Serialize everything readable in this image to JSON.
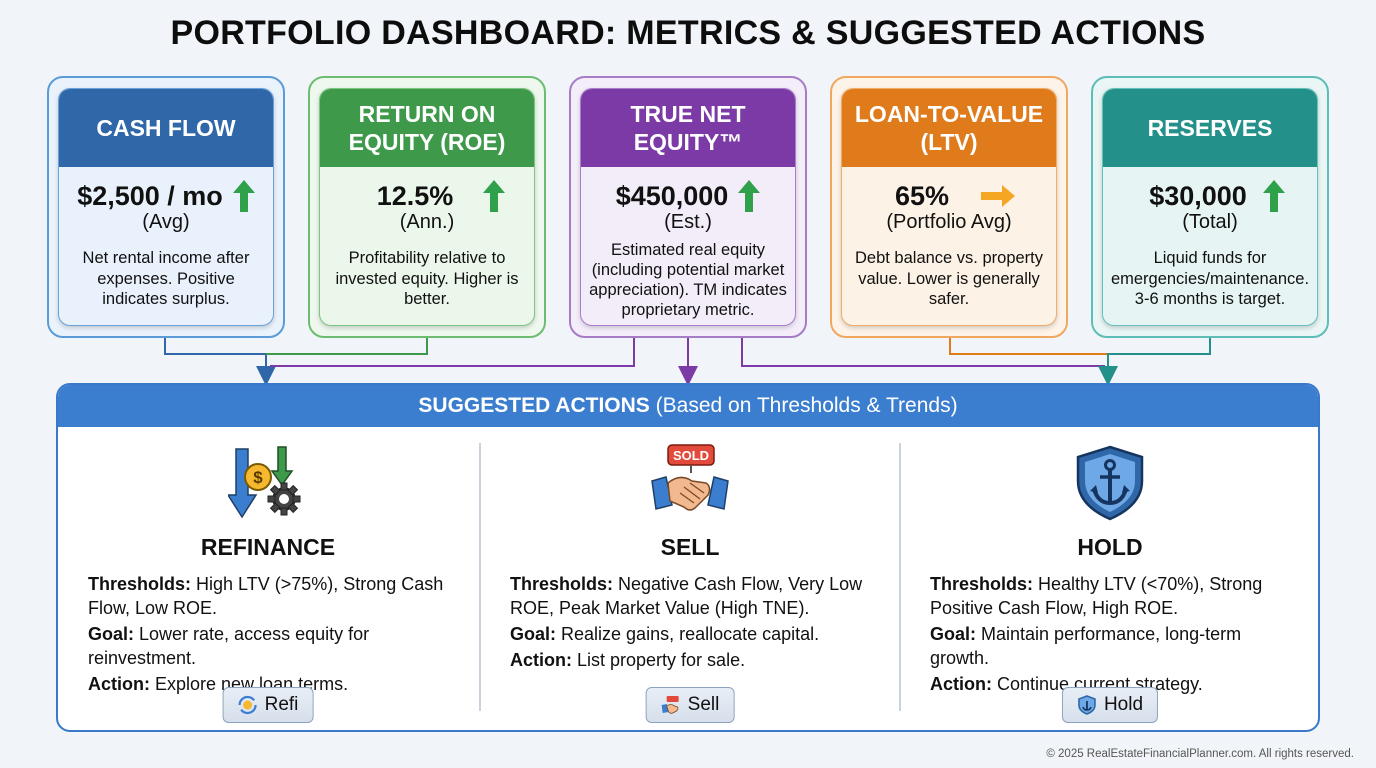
{
  "title": "PORTFOLIO DASHBOARD: METRICS & SUGGESTED ACTIONS",
  "colors": {
    "cash_flow": "#2f67a9",
    "roe": "#3e9a4a",
    "tne": "#7b3aa6",
    "ltv": "#e07b1c",
    "reserves": "#24908a",
    "arrow_up": "#2fa14a",
    "arrow_right": "#f5a623",
    "actions_header": "#3b7ed0"
  },
  "metrics": [
    {
      "id": "cash-flow",
      "title": "CASH FLOW",
      "value": "$2,500 / mo",
      "sub": "(Avg)",
      "trend": "up",
      "desc": "Net rental income after expenses. Positive indicates surplus."
    },
    {
      "id": "roe",
      "title": "RETURN ON EQUITY (ROE)",
      "value": "12.5%",
      "sub": "(Ann.)",
      "trend": "up",
      "desc": "Profitability relative to invested equity. Higher is better."
    },
    {
      "id": "tne",
      "title": "TRUE NET EQUITY™",
      "value": "$450,000",
      "sub": "(Est.)",
      "trend": "up",
      "desc": "Estimated real equity (including potential market appreciation). TM indicates proprietary metric."
    },
    {
      "id": "ltv",
      "title": "LOAN-TO-VALUE (LTV)",
      "value": "65%",
      "sub": "(Portfolio Avg)",
      "trend": "right",
      "desc": "Debt balance vs. property value. Lower is generally safer."
    },
    {
      "id": "reserves",
      "title": "RESERVES",
      "value": "$30,000",
      "sub": "(Total)",
      "trend": "up",
      "desc": "Liquid funds for emergencies/maintenance. 3-6 months is target."
    }
  ],
  "actions": {
    "header_bold": "SUGGESTED ACTIONS",
    "header_rest": " (Based on Thresholds & Trends)",
    "items": [
      {
        "id": "refinance",
        "title": "REFINANCE",
        "thresholds_label": "Thresholds:",
        "thresholds": " High LTV (>75%), Strong Cash Flow, Low ROE.",
        "goal_label": "Goal:",
        "goal": " Lower rate, access equity for reinvestment.",
        "action_label": "Action:",
        "action": " Explore new loan terms.",
        "button": "Refi"
      },
      {
        "id": "sell",
        "title": "SELL",
        "thresholds_label": "Thresholds:",
        "thresholds": " Negative Cash Flow, Very Low ROE, Peak Market Value (High TNE).",
        "goal_label": "Goal:",
        "goal": " Realize gains, reallocate capital.",
        "action_label": "Action:",
        "action": " List property for sale.",
        "button": "Sell",
        "sign_text": "SOLD"
      },
      {
        "id": "hold",
        "title": "HOLD",
        "thresholds_label": "Thresholds:",
        "thresholds": " Healthy LTV (<70%), Strong Positive Cash Flow, High ROE.",
        "goal_label": "Goal:",
        "goal": " Maintain performance, long-term growth.",
        "action_label": "Action:",
        "action": " Continue current strategy.",
        "button": "Hold"
      }
    ]
  },
  "footer": "© 2025 RealEstateFinancialPlanner.com. All rights reserved."
}
